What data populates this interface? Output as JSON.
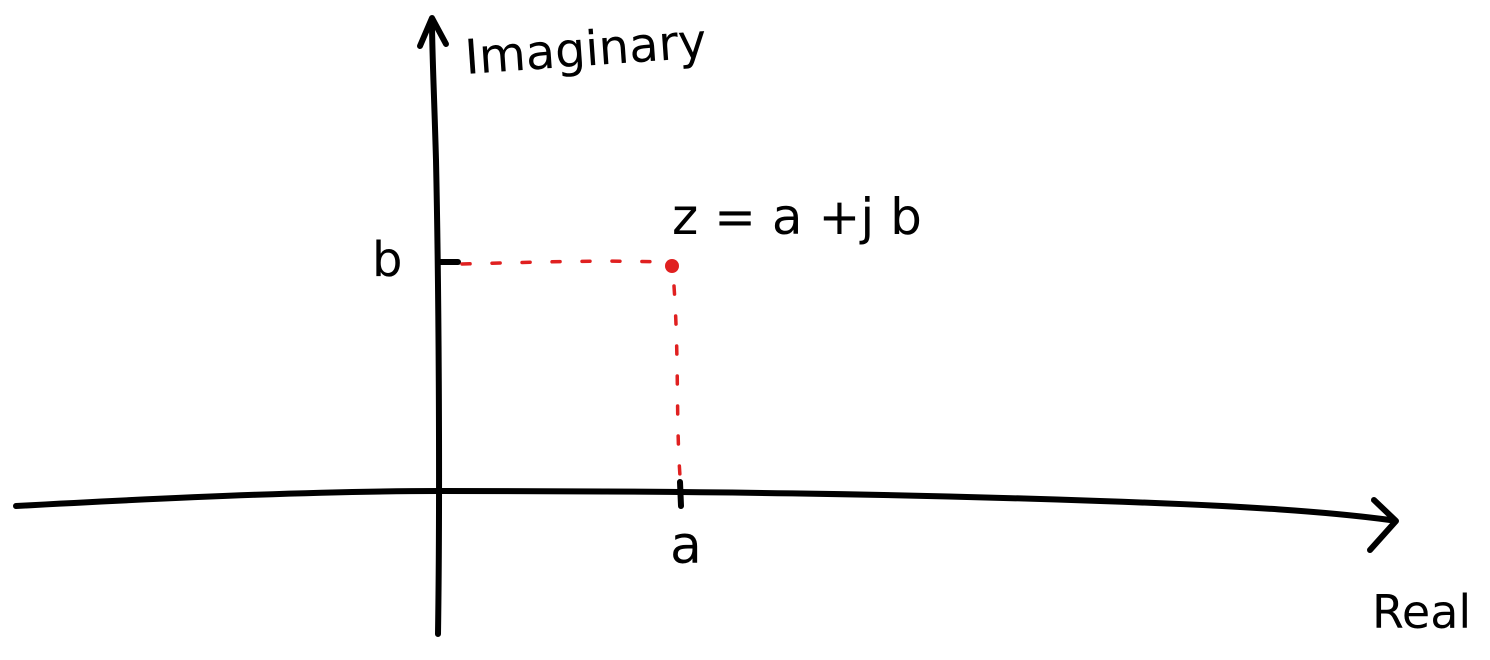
{
  "diagram": {
    "axes": {
      "x_label": "Real",
      "y_label": "Imaginary"
    },
    "point": {
      "label": "z = a +j b",
      "real_tick_label": "a",
      "imag_tick_label": "b"
    },
    "colors": {
      "axes": "#000000",
      "guides": "#e02020",
      "point": "#e02020"
    }
  }
}
